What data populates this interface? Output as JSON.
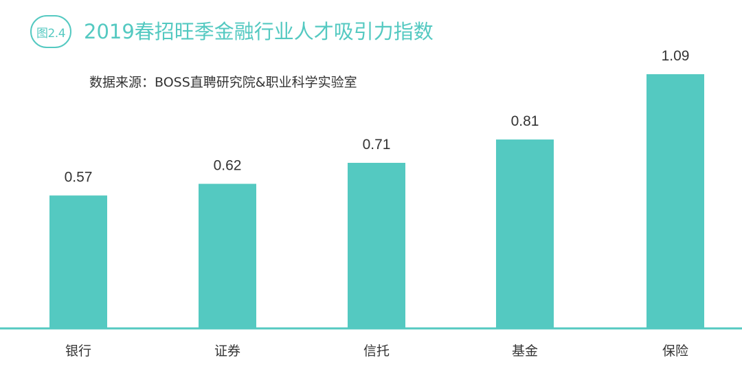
{
  "figure": {
    "badge": "图2.4",
    "title": "2019春招旺季金融行业人才吸引力指数",
    "source": "数据来源：BOSS直聘研究院&职业科学实验室"
  },
  "colors": {
    "accent": "#54C9C1",
    "bar": "#54C9C1",
    "axis": "#54C9C1",
    "text": "#333333"
  },
  "chart_data": {
    "type": "bar",
    "title": "2019春招旺季金融行业人才吸引力指数",
    "xlabel": "",
    "ylabel": "",
    "categories": [
      "银行",
      "证券",
      "信托",
      "基金",
      "保险"
    ],
    "values": [
      0.57,
      0.62,
      0.71,
      0.81,
      1.09
    ],
    "data_labels": [
      "0.57",
      "0.62",
      "0.71",
      "0.81",
      "1.09"
    ],
    "ylim": [
      0,
      1.1
    ],
    "grid": false,
    "legend": "none"
  }
}
